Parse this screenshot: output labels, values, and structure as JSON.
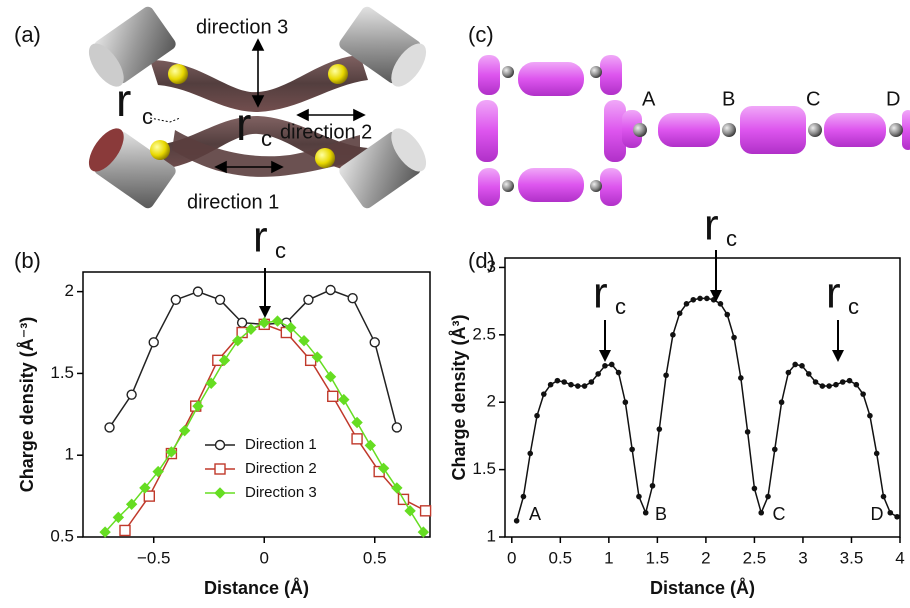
{
  "panel_a": {
    "label": "(a)",
    "directions": [
      "direction 3",
      "direction 2",
      "direction 1"
    ],
    "rc": [
      {
        "symbol": "r",
        "subscript": "c"
      },
      {
        "symbol": "r",
        "subscript": "c"
      }
    ]
  },
  "panel_c": {
    "label": "(c)",
    "sites": [
      "A",
      "B",
      "C",
      "D"
    ]
  },
  "chart_data": [
    {
      "type": "line",
      "panel_label": "(b)",
      "xlabel": "Distance (Å)",
      "ylabel": "Charge density (Å⁻³)",
      "xlim": [
        -0.82,
        0.75
      ],
      "ylim": [
        0.5,
        2.12
      ],
      "xticks": [
        {
          "value": -0.5,
          "label": "−0.5"
        },
        0,
        0.5
      ],
      "yticks": [
        0.5,
        1,
        1.5,
        2
      ],
      "legend": "lower center",
      "annotations": [
        {
          "symbol": "r",
          "subscript": "c"
        }
      ],
      "series": [
        {
          "name": "Direction 1",
          "color": "#222222",
          "marker": "circle",
          "x": [
            -0.7,
            -0.6,
            -0.5,
            -0.4,
            -0.3,
            -0.2,
            -0.1,
            0,
            0.1,
            0.2,
            0.3,
            0.4,
            0.5,
            0.6
          ],
          "values": [
            1.17,
            1.37,
            1.69,
            1.95,
            2.0,
            1.95,
            1.81,
            1.8,
            1.81,
            1.95,
            2.01,
            1.96,
            1.69,
            1.17
          ]
        },
        {
          "name": "Direction 2",
          "color": "#c0392b",
          "marker": "square",
          "x": [
            -0.63,
            -0.52,
            -0.42,
            -0.31,
            -0.21,
            -0.1,
            0,
            0.1,
            0.21,
            0.31,
            0.42,
            0.52,
            0.63,
            0.73
          ],
          "values": [
            0.54,
            0.75,
            1.01,
            1.3,
            1.58,
            1.75,
            1.8,
            1.75,
            1.58,
            1.36,
            1.1,
            0.9,
            0.73,
            0.66
          ]
        },
        {
          "name": "Direction 3",
          "color": "#66dd22",
          "marker": "diamond",
          "x": [
            -0.72,
            -0.66,
            -0.6,
            -0.54,
            -0.48,
            -0.42,
            -0.36,
            -0.3,
            -0.24,
            -0.18,
            -0.12,
            -0.06,
            0,
            0.06,
            0.12,
            0.18,
            0.24,
            0.3,
            0.36,
            0.42,
            0.48,
            0.54,
            0.6,
            0.66,
            0.72
          ],
          "values": [
            0.53,
            0.62,
            0.7,
            0.8,
            0.9,
            1.02,
            1.15,
            1.3,
            1.44,
            1.58,
            1.7,
            1.77,
            1.81,
            1.82,
            1.78,
            1.7,
            1.6,
            1.48,
            1.34,
            1.2,
            1.06,
            0.92,
            0.8,
            0.66,
            0.53
          ]
        }
      ]
    },
    {
      "type": "line",
      "panel_label": "(d)",
      "xlabel": "Distance (Å)",
      "ylabel": "Charge density (Å³)",
      "xlim": [
        -0.07,
        4.0
      ],
      "ylim": [
        1,
        3.07
      ],
      "xticks": [
        0,
        0.5,
        1,
        1.5,
        2,
        2.5,
        3,
        3.5,
        4
      ],
      "yticks": [
        1,
        1.5,
        2,
        2.5,
        3
      ],
      "annotations": [
        {
          "symbol": "r",
          "subscript": "c"
        },
        {
          "symbol": "r",
          "subscript": "c"
        },
        {
          "symbol": "r",
          "subscript": "c"
        }
      ],
      "site_labels": [
        "A",
        "B",
        "C",
        "D"
      ],
      "series": [
        {
          "color": "#111111",
          "marker": "dot",
          "x": [
            0.05,
            0.12,
            0.19,
            0.26,
            0.33,
            0.4,
            0.47,
            0.54,
            0.61,
            0.68,
            0.75,
            0.82,
            0.89,
            0.96,
            1.03,
            1.1,
            1.17,
            1.24,
            1.31,
            1.38,
            1.45,
            1.52,
            1.59,
            1.66,
            1.73,
            1.8,
            1.87,
            1.94,
            2.01,
            2.08,
            2.15,
            2.22,
            2.29,
            2.36,
            2.43,
            2.5,
            2.57,
            2.64,
            2.71,
            2.78,
            2.85,
            2.92,
            2.99,
            3.06,
            3.13,
            3.2,
            3.27,
            3.34,
            3.41,
            3.48,
            3.55,
            3.62,
            3.69,
            3.76,
            3.83,
            3.9,
            3.97
          ],
          "values": [
            1.12,
            1.3,
            1.62,
            1.9,
            2.06,
            2.13,
            2.16,
            2.15,
            2.13,
            2.12,
            2.12,
            2.15,
            2.21,
            2.27,
            2.28,
            2.22,
            2.0,
            1.65,
            1.3,
            1.18,
            1.38,
            1.8,
            2.2,
            2.5,
            2.66,
            2.73,
            2.76,
            2.77,
            2.77,
            2.76,
            2.73,
            2.65,
            2.48,
            2.18,
            1.78,
            1.36,
            1.18,
            1.3,
            1.65,
            2.0,
            2.22,
            2.28,
            2.27,
            2.21,
            2.15,
            2.12,
            2.12,
            2.13,
            2.15,
            2.16,
            2.13,
            2.06,
            1.9,
            1.62,
            1.3,
            1.18,
            1.15
          ]
        }
      ]
    }
  ]
}
